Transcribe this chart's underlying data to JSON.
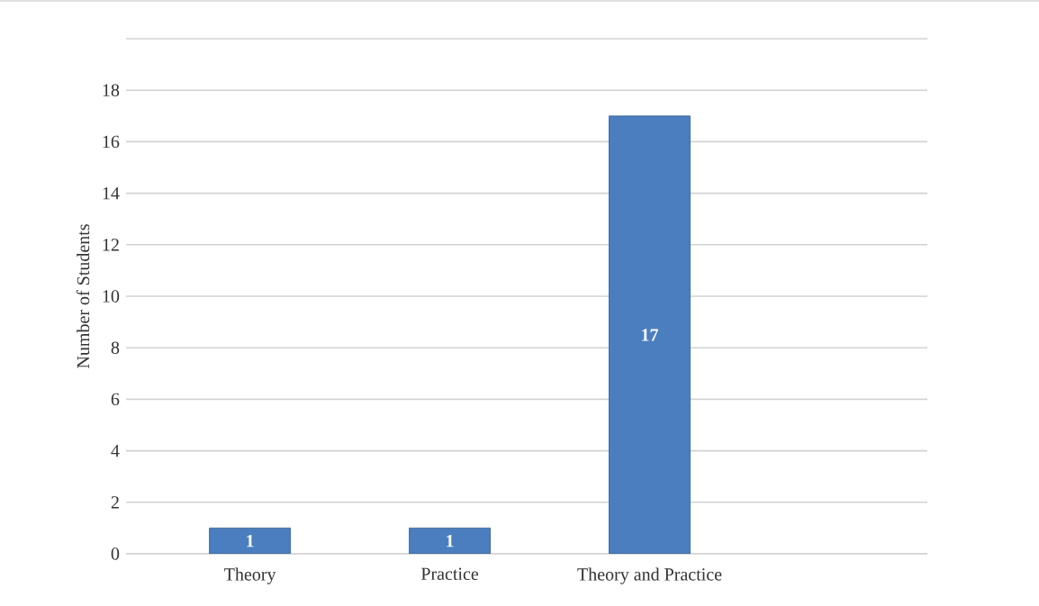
{
  "chart_data": {
    "type": "bar",
    "ylabel": "Number of Students",
    "categories": [
      "Theory",
      "Practice",
      "Theory and Practice"
    ],
    "values": [
      1,
      1,
      17
    ],
    "color": "#4a7ebf",
    "ylim": [
      0,
      20
    ],
    "yticks": [
      0,
      2,
      4,
      6,
      8,
      10,
      12,
      14,
      16,
      18,
      {
        "value": 20,
        "label": null
      }
    ],
    "grid": "y",
    "data_labels": true
  }
}
